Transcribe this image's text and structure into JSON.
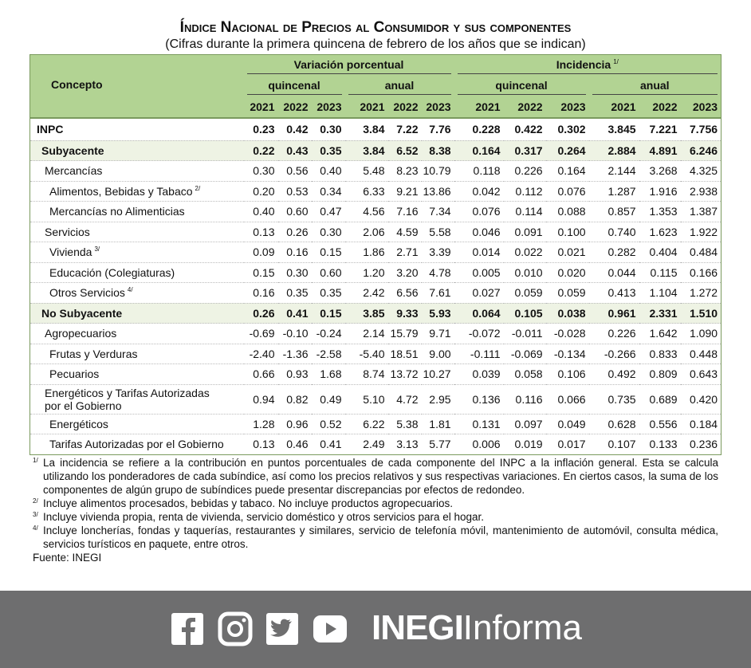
{
  "header": {
    "title": "Índice Nacional de Precios al Consumidor y sus componentes",
    "subtitle": "(Cifras durante la primera quincena de febrero de los años que se indican)"
  },
  "table": {
    "concept": "Concepto",
    "groups": [
      {
        "label": "Variación porcentual",
        "note": "",
        "sub": [
          {
            "label": "quincenal",
            "years": [
              "2021",
              "2022",
              "2023"
            ]
          },
          {
            "label": "anual",
            "years": [
              "2021",
              "2022",
              "2023"
            ]
          }
        ]
      },
      {
        "label": "Incidencia",
        "note": "1/",
        "sub": [
          {
            "label": "quincenal",
            "years": [
              "2021",
              "2022",
              "2023"
            ]
          },
          {
            "label": "anual",
            "years": [
              "2021",
              "2022",
              "2023"
            ]
          }
        ]
      }
    ],
    "rows": [
      {
        "label": "INPC",
        "note": "",
        "values": [
          "0.23",
          "0.42",
          "0.30",
          "3.84",
          "7.22",
          "7.76",
          "0.228",
          "0.422",
          "0.302",
          "3.845",
          "7.221",
          "7.756"
        ]
      },
      {
        "label": "Subyacente",
        "note": "",
        "values": [
          "0.22",
          "0.43",
          "0.35",
          "3.84",
          "6.52",
          "8.38",
          "0.164",
          "0.317",
          "0.264",
          "2.884",
          "4.891",
          "6.246"
        ]
      },
      {
        "label": "Mercancías",
        "note": "",
        "values": [
          "0.30",
          "0.56",
          "0.40",
          "5.48",
          "8.23",
          "10.79",
          "0.118",
          "0.226",
          "0.164",
          "2.144",
          "3.268",
          "4.325"
        ]
      },
      {
        "label": "Alimentos, Bebidas y Tabaco",
        "note": "2/",
        "values": [
          "0.20",
          "0.53",
          "0.34",
          "6.33",
          "9.21",
          "13.86",
          "0.042",
          "0.112",
          "0.076",
          "1.287",
          "1.916",
          "2.938"
        ]
      },
      {
        "label": "Mercancías no Alimenticias",
        "note": "",
        "values": [
          "0.40",
          "0.60",
          "0.47",
          "4.56",
          "7.16",
          "7.34",
          "0.076",
          "0.114",
          "0.088",
          "0.857",
          "1.353",
          "1.387"
        ]
      },
      {
        "label": "Servicios",
        "note": "",
        "values": [
          "0.13",
          "0.26",
          "0.30",
          "2.06",
          "4.59",
          "5.58",
          "0.046",
          "0.091",
          "0.100",
          "0.740",
          "1.623",
          "1.922"
        ]
      },
      {
        "label": "Vivienda",
        "note": "3/",
        "values": [
          "0.09",
          "0.16",
          "0.15",
          "1.86",
          "2.71",
          "3.39",
          "0.014",
          "0.022",
          "0.021",
          "0.282",
          "0.404",
          "0.484"
        ]
      },
      {
        "label": "Educación (Colegiaturas)",
        "note": "",
        "values": [
          "0.15",
          "0.30",
          "0.60",
          "1.20",
          "3.20",
          "4.78",
          "0.005",
          "0.010",
          "0.020",
          "0.044",
          "0.115",
          "0.166"
        ]
      },
      {
        "label": "Otros Servicios",
        "note": "4/",
        "values": [
          "0.16",
          "0.35",
          "0.35",
          "2.42",
          "6.56",
          "7.61",
          "0.027",
          "0.059",
          "0.059",
          "0.413",
          "1.104",
          "1.272"
        ]
      },
      {
        "label": "No Subyacente",
        "note": "",
        "values": [
          "0.26",
          "0.41",
          "0.15",
          "3.85",
          "9.33",
          "5.93",
          "0.064",
          "0.105",
          "0.038",
          "0.961",
          "2.331",
          "1.510"
        ]
      },
      {
        "label": "Agropecuarios",
        "note": "",
        "values": [
          "-0.69",
          "-0.10",
          "-0.24",
          "2.14",
          "15.79",
          "9.71",
          "-0.072",
          "-0.011",
          "-0.028",
          "0.226",
          "1.642",
          "1.090"
        ]
      },
      {
        "label": "Frutas y Verduras",
        "note": "",
        "values": [
          "-2.40",
          "-1.36",
          "-2.58",
          "-5.40",
          "18.51",
          "9.00",
          "-0.111",
          "-0.069",
          "-0.134",
          "-0.266",
          "0.833",
          "0.448"
        ]
      },
      {
        "label": "Pecuarios",
        "note": "",
        "values": [
          "0.66",
          "0.93",
          "1.68",
          "8.74",
          "13.72",
          "10.27",
          "0.039",
          "0.058",
          "0.106",
          "0.492",
          "0.809",
          "0.643"
        ]
      },
      {
        "label": "Energéticos y Tarifas Autorizadas por el Gobierno",
        "note": "",
        "values": [
          "0.94",
          "0.82",
          "0.49",
          "5.10",
          "4.72",
          "2.95",
          "0.136",
          "0.116",
          "0.066",
          "0.735",
          "0.689",
          "0.420"
        ]
      },
      {
        "label": "Energéticos",
        "note": "",
        "values": [
          "1.28",
          "0.96",
          "0.52",
          "6.22",
          "5.38",
          "1.81",
          "0.131",
          "0.097",
          "0.049",
          "0.628",
          "0.556",
          "0.184"
        ]
      },
      {
        "label": "Tarifas Autorizadas por el Gobierno",
        "note": "",
        "values": [
          "0.13",
          "0.46",
          "0.41",
          "2.49",
          "3.13",
          "5.77",
          "0.006",
          "0.019",
          "0.017",
          "0.107",
          "0.133",
          "0.236"
        ]
      }
    ]
  },
  "footnotes": [
    {
      "mark": "1/",
      "text": "La incidencia se refiere a la contribución en puntos porcentuales de cada componente del INPC a la inflación general. Esta se calcula utilizando los ponderadores de cada subíndice, así como los precios relativos y sus respectivas variaciones. En ciertos casos, la suma de los componentes de algún grupo de subíndices puede presentar discrepancias por efectos de redondeo."
    },
    {
      "mark": "2/",
      "text": "Incluye alimentos procesados, bebidas y tabaco. No incluye productos agropecuarios."
    },
    {
      "mark": "3/",
      "text": "Incluye vivienda propia, renta de vivienda, servicio doméstico y otros servicios para el hogar."
    },
    {
      "mark": "4/",
      "text": "Incluye loncherías, fondas y taquerías, restaurantes y similares, servicio de telefonía móvil, mantenimiento de automóvil, consulta médica, servicios turísticos en paquete, entre otros."
    }
  ],
  "source": "Fuente: INEGI",
  "footer": {
    "brand": "INEGI",
    "product": "Informa"
  }
}
